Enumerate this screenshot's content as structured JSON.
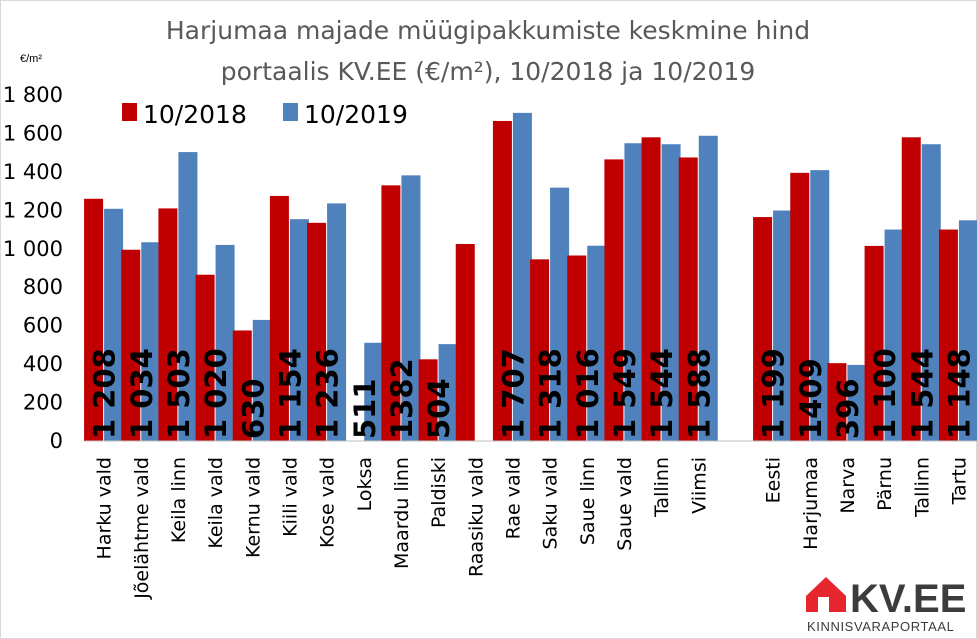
{
  "chart_data": {
    "type": "bar",
    "title_lines": [
      "Harjumaa majade müügipakkumiste keskmine hind",
      "portaalis KV.EE (€/m²), 10/2018 ja 10/2019"
    ],
    "unit_label": "€/m²",
    "ylim": [
      0,
      1800
    ],
    "yticks": [
      "0",
      "200",
      "400",
      "600",
      "800",
      "1 000",
      "1 200",
      "1 400",
      "1 600",
      "1 800"
    ],
    "grid": false,
    "legend_position": "top-left",
    "categories": [
      "Harku vald",
      "Jõelähtme vald",
      "Keila linn",
      "Keila vald",
      "Kernu vald",
      "Kiili vald",
      "Kose vald",
      "Loksa",
      "Maardu linn",
      "Paldiski",
      "Raasiku vald",
      "Rae vald",
      "Saku vald",
      "Saue linn",
      "Saue vald",
      "Tallinn",
      "Viimsi",
      "",
      "Eesti",
      "Harjumaa",
      "Narva",
      "Pärnu",
      "Tallinn",
      "Tartu"
    ],
    "series": [
      {
        "name": "10/2018",
        "color": "#c00000",
        "values": [
          1260,
          995,
          1210,
          865,
          575,
          1275,
          1135,
          null,
          1330,
          425,
          1025,
          1665,
          945,
          965,
          1465,
          1580,
          1475,
          null,
          1165,
          1395,
          405,
          1015,
          1580,
          1100
        ]
      },
      {
        "name": "10/2019",
        "color": "#4f81bd",
        "values": [
          1208,
          1034,
          1503,
          1020,
          630,
          1154,
          1236,
          511,
          1382,
          504,
          null,
          1707,
          1318,
          1016,
          1549,
          1544,
          1588,
          null,
          1199,
          1409,
          396,
          1100,
          1544,
          1148
        ]
      }
    ],
    "data_labels": [
      "1 208",
      "1 034",
      "1 503",
      "1 020",
      "630",
      "1 154",
      "1 236",
      "511",
      "1382",
      "504",
      "",
      "1 707",
      "1 318",
      "1 016",
      "1 549",
      "1 544",
      "1 588",
      "",
      "1 199",
      "1409",
      "396",
      "1 100",
      "1 544",
      "1 148"
    ]
  },
  "logo": {
    "name": "KV.EE",
    "tagline": "KINNISVARAPORTAAL",
    "color": "#e5262f"
  }
}
